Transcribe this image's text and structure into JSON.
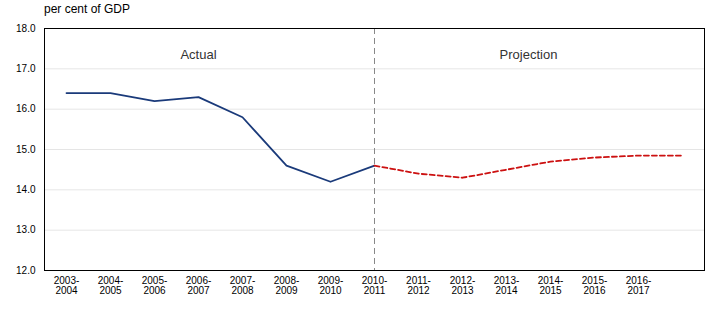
{
  "chart_data": {
    "type": "line",
    "ylabel": "per cent of GDP",
    "categories": [
      "2003-\n2004",
      "2004-\n2005",
      "2005-\n2006",
      "2006-\n2007",
      "2007-\n2008",
      "2008-\n2009",
      "2009-\n2010",
      "2010-\n2011",
      "2011-\n2012",
      "2012-\n2013",
      "2013-\n2014",
      "2014-\n2015",
      "2015-\n2016",
      "2016-\n2017",
      null
    ],
    "series": [
      {
        "color": "#1a3a7a",
        "line_style": "solid",
        "values": [
          16.4,
          16.4,
          16.2,
          16.3,
          15.8,
          14.6,
          14.2,
          14.6,
          null,
          null,
          null,
          null,
          null,
          null,
          null
        ]
      },
      {
        "color": "#cc1111",
        "line_style": "dashed",
        "values": [
          null,
          null,
          null,
          null,
          null,
          null,
          null,
          14.6,
          14.4,
          14.3,
          14.5,
          14.7,
          14.8,
          14.85,
          14.85
        ]
      }
    ],
    "ylim": [
      12,
      18
    ],
    "yticks": [
      12,
      13,
      14,
      15,
      16,
      17,
      18
    ],
    "grid": true,
    "annotations": [
      {
        "text": "Actual",
        "x": 3,
        "y": 17.35
      },
      {
        "text": "Projection",
        "x": 10.5,
        "y": 17.35
      }
    ],
    "vlines": [
      {
        "x": 7,
        "color": "#888888",
        "line_style": "dashed"
      }
    ]
  }
}
